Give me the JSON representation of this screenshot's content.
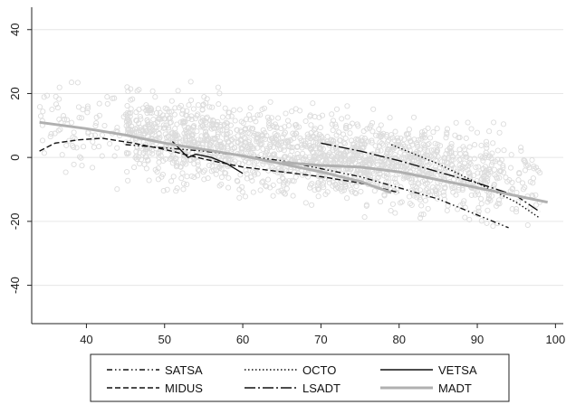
{
  "chart_data": {
    "type": "scatter",
    "title": "",
    "xlabel": "",
    "ylabel": "",
    "xlim": [
      33,
      101
    ],
    "ylim": [
      -52,
      47
    ],
    "x_ticks": [
      40,
      50,
      60,
      70,
      80,
      90,
      100
    ],
    "y_ticks": [
      -40,
      -20,
      0,
      20,
      40
    ],
    "grid": true,
    "legend_position": "bottom",
    "legend_columns": 3,
    "scatter_color": "#dcdcdc",
    "scatter_note": "dense cloud of individual observations (open circles), roughly ages 34-100",
    "series": [
      {
        "name": "SATSA",
        "style": "dash-dot-dot",
        "color": "#111111",
        "points": [
          [
            45,
            4
          ],
          [
            55,
            2
          ],
          [
            65,
            -1
          ],
          [
            75,
            -6
          ],
          [
            85,
            -13
          ],
          [
            94,
            -22
          ]
        ]
      },
      {
        "name": "OCTO",
        "style": "dotted",
        "color": "#111111",
        "points": [
          [
            79,
            4
          ],
          [
            85,
            -2
          ],
          [
            90,
            -8
          ],
          [
            95,
            -14
          ],
          [
            98,
            -19
          ]
        ]
      },
      {
        "name": "VETSA",
        "style": "solid",
        "color": "#111111",
        "points": [
          [
            51,
            5
          ],
          [
            53,
            0
          ],
          [
            54,
            1
          ],
          [
            56,
            0
          ],
          [
            58,
            -2
          ],
          [
            60,
            -5
          ]
        ]
      },
      {
        "name": "MIDUS",
        "style": "dashed",
        "color": "#111111",
        "points": [
          [
            34,
            2
          ],
          [
            36,
            4.5
          ],
          [
            39,
            5.5
          ],
          [
            42,
            6
          ],
          [
            46,
            4.5
          ],
          [
            50,
            2.5
          ],
          [
            55,
            -0.5
          ],
          [
            60,
            -3
          ],
          [
            65,
            -4.5
          ],
          [
            70,
            -6
          ],
          [
            75,
            -8
          ],
          [
            80,
            -11
          ]
        ]
      },
      {
        "name": "LSADT",
        "style": "long-dash-dot",
        "color": "#111111",
        "points": [
          [
            70,
            4.5
          ],
          [
            75,
            2
          ],
          [
            80,
            -1
          ],
          [
            85,
            -4.5
          ],
          [
            90,
            -8
          ],
          [
            95,
            -12
          ],
          [
            98,
            -17
          ]
        ]
      },
      {
        "name": "MADT",
        "style": "solid",
        "color": "#b0b0b0",
        "points": [
          [
            34,
            11
          ],
          [
            40,
            9
          ],
          [
            45,
            7
          ],
          [
            50,
            4.5
          ],
          [
            55,
            2.5
          ],
          [
            60,
            0.5
          ],
          [
            65,
            -2
          ],
          [
            70,
            -4.5
          ],
          [
            75,
            -7.5
          ],
          [
            79,
            -11
          ]
        ]
      },
      {
        "name": "",
        "style": "solid",
        "color": "#b0b0b0",
        "points": [
          [
            65,
            -1.5
          ],
          [
            70,
            -2.5
          ],
          [
            75,
            -3
          ],
          [
            80,
            -4.5
          ],
          [
            85,
            -7
          ],
          [
            90,
            -9.5
          ],
          [
            95,
            -12
          ],
          [
            99,
            -14
          ]
        ]
      }
    ]
  },
  "legend": {
    "items": [
      {
        "label": "SATSA",
        "style": "dash-dot-dot",
        "color": "#111111"
      },
      {
        "label": "OCTO",
        "style": "dotted",
        "color": "#111111"
      },
      {
        "label": "VETSA",
        "style": "solid",
        "color": "#111111"
      },
      {
        "label": "MIDUS",
        "style": "dashed",
        "color": "#111111"
      },
      {
        "label": "LSADT",
        "style": "long-dash-dot",
        "color": "#111111"
      },
      {
        "label": "MADT",
        "style": "solid",
        "color": "#b0b0b0"
      }
    ]
  }
}
